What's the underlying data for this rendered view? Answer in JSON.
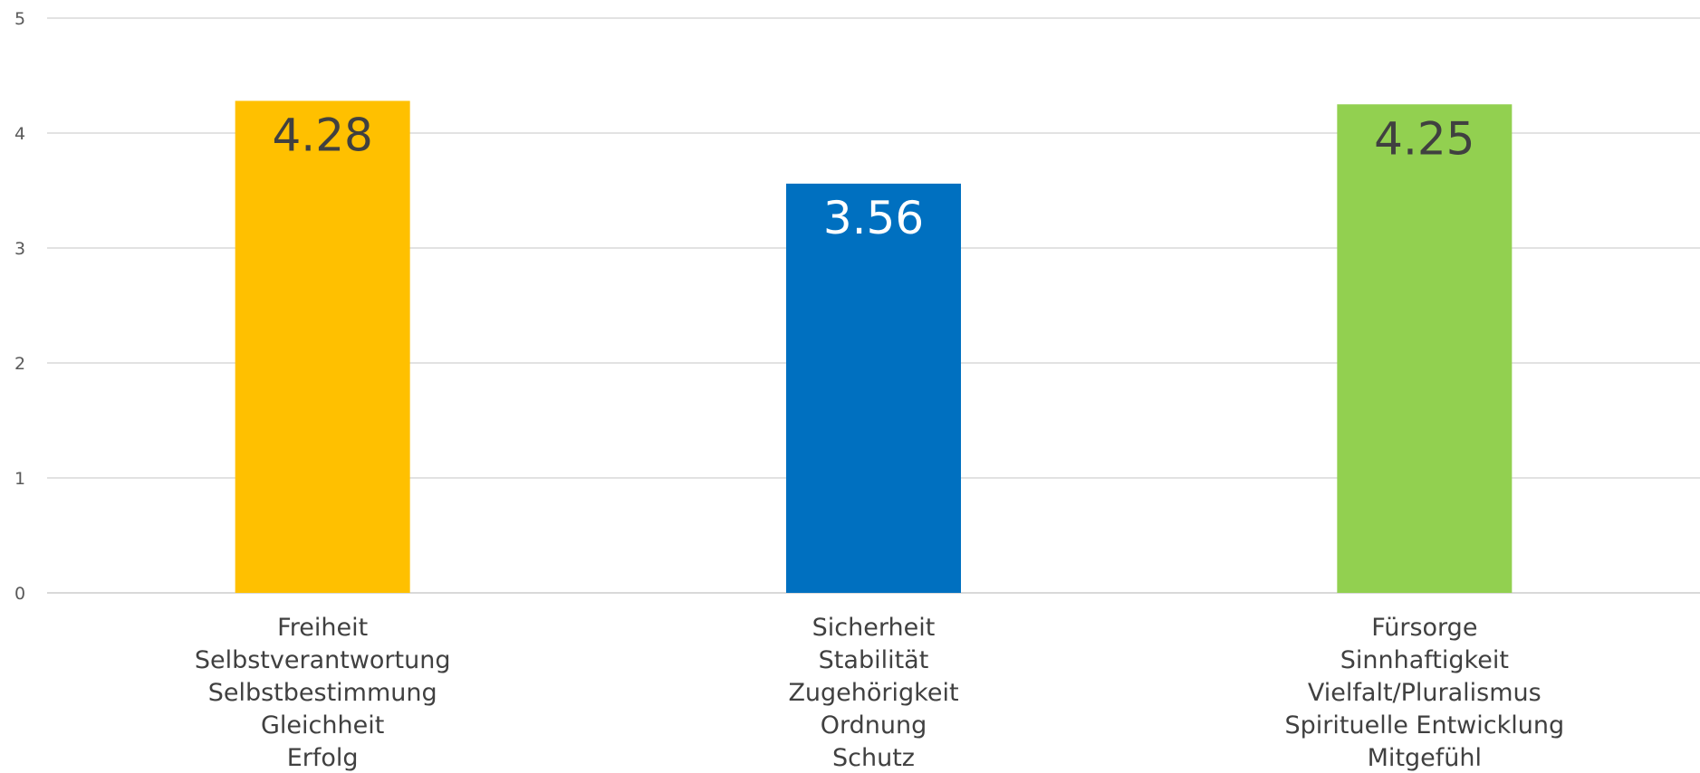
{
  "chart_data": {
    "type": "bar",
    "title": "",
    "xlabel": "",
    "ylabel": "",
    "ylim": [
      0,
      5
    ],
    "yticks": [
      "0",
      "1",
      "2",
      "3",
      "4",
      "5"
    ],
    "grid": true,
    "legend": "none",
    "categories": [
      [
        "Freiheit",
        "Selbstverantwortung",
        "Selbstbestimmung",
        "Gleichheit",
        "Erfolg"
      ],
      [
        "Sicherheit",
        "Stabilität",
        "Zugehörigkeit",
        "Ordnung",
        "Schutz"
      ],
      [
        "Fürsorge",
        "Sinnhaftigkeit",
        "Vielfalt/Pluralismus",
        "Spirituelle Entwicklung",
        "Mitgefühl"
      ]
    ],
    "values": [
      4.28,
      3.56,
      4.25
    ],
    "data_labels": [
      "4.28",
      "3.56",
      "4.25"
    ],
    "colors": [
      "#FFC000",
      "#0070C0",
      "#92D050"
    ],
    "label_colors": [
      "#404040",
      "#FFFFFF",
      "#404040"
    ],
    "gridline_color": "#D9D9D9",
    "tick_color": "#595959"
  }
}
